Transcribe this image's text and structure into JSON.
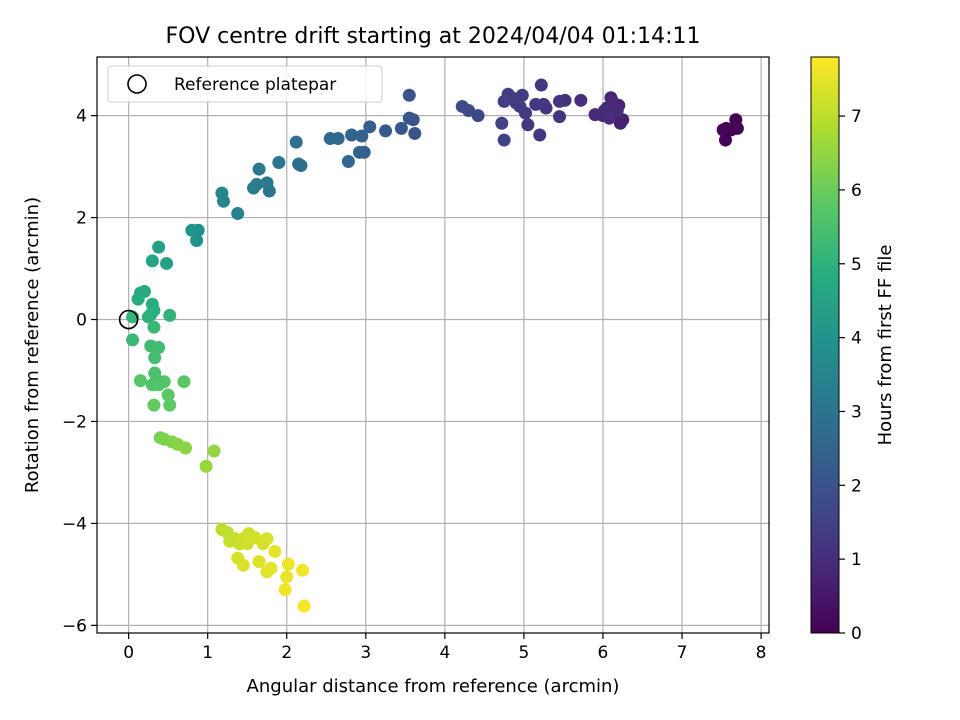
{
  "chart_data": {
    "type": "scatter",
    "title": "FOV centre drift starting at 2024/04/04 01:14:11",
    "xlabel": "Angular distance from reference (arcmin)",
    "ylabel": "Rotation from reference (arcmin)",
    "xlim": [
      -0.4,
      8.1
    ],
    "ylim": [
      -6.15,
      5.15
    ],
    "xticks": [
      0,
      1,
      2,
      3,
      4,
      5,
      6,
      7,
      8
    ],
    "yticks": [
      -6,
      -4,
      -2,
      0,
      2,
      4
    ],
    "grid": true,
    "legend": {
      "position": "top-left",
      "entries": [
        "Reference platepar"
      ]
    },
    "reference_point": {
      "x": 0,
      "y": 0
    },
    "colorbar": {
      "label": "Hours from first FF file",
      "min": 0,
      "max": 7.8,
      "ticks": [
        0,
        1,
        2,
        3,
        4,
        5,
        6,
        7
      ],
      "colormap": "viridis"
    },
    "points": [
      {
        "x": 7.68,
        "y": 3.92,
        "t": 0.0
      },
      {
        "x": 7.56,
        "y": 3.75,
        "t": 0.0
      },
      {
        "x": 7.62,
        "y": 3.72,
        "t": 0.05
      },
      {
        "x": 7.7,
        "y": 3.75,
        "t": 0.08
      },
      {
        "x": 7.55,
        "y": 3.52,
        "t": 0.1
      },
      {
        "x": 7.52,
        "y": 3.72,
        "t": 0.12
      },
      {
        "x": 6.25,
        "y": 3.92,
        "t": 0.7
      },
      {
        "x": 6.22,
        "y": 3.85,
        "t": 0.72
      },
      {
        "x": 6.15,
        "y": 4.05,
        "t": 0.75
      },
      {
        "x": 6.2,
        "y": 4.2,
        "t": 0.78
      },
      {
        "x": 6.1,
        "y": 4.35,
        "t": 0.8
      },
      {
        "x": 6.05,
        "y": 4.15,
        "t": 0.82
      },
      {
        "x": 6.0,
        "y": 4.0,
        "t": 0.85
      },
      {
        "x": 5.9,
        "y": 4.02,
        "t": 0.9
      },
      {
        "x": 6.12,
        "y": 4.28,
        "t": 0.88
      },
      {
        "x": 6.18,
        "y": 4.1,
        "t": 0.92
      },
      {
        "x": 6.02,
        "y": 4.1,
        "t": 0.95
      },
      {
        "x": 6.08,
        "y": 3.95,
        "t": 0.98
      },
      {
        "x": 5.72,
        "y": 4.3,
        "t": 1.05
      },
      {
        "x": 5.52,
        "y": 4.3,
        "t": 1.1
      },
      {
        "x": 5.45,
        "y": 4.28,
        "t": 1.12
      },
      {
        "x": 5.45,
        "y": 3.98,
        "t": 1.15
      },
      {
        "x": 5.28,
        "y": 4.15,
        "t": 1.18
      },
      {
        "x": 5.22,
        "y": 4.6,
        "t": 1.2
      },
      {
        "x": 5.25,
        "y": 4.22,
        "t": 1.22
      },
      {
        "x": 5.2,
        "y": 3.62,
        "t": 1.25
      },
      {
        "x": 5.15,
        "y": 4.22,
        "t": 1.28
      },
      {
        "x": 5.05,
        "y": 3.82,
        "t": 1.3
      },
      {
        "x": 5.02,
        "y": 4.05,
        "t": 1.32
      },
      {
        "x": 4.98,
        "y": 4.4,
        "t": 1.35
      },
      {
        "x": 4.95,
        "y": 4.18,
        "t": 1.38
      },
      {
        "x": 4.9,
        "y": 4.25,
        "t": 1.4
      },
      {
        "x": 4.85,
        "y": 4.35,
        "t": 1.42
      },
      {
        "x": 4.8,
        "y": 4.42,
        "t": 1.45
      },
      {
        "x": 4.75,
        "y": 4.28,
        "t": 1.48
      },
      {
        "x": 4.72,
        "y": 3.85,
        "t": 1.5
      },
      {
        "x": 4.75,
        "y": 3.52,
        "t": 1.52
      },
      {
        "x": 4.42,
        "y": 4.0,
        "t": 1.7
      },
      {
        "x": 4.3,
        "y": 4.1,
        "t": 1.75
      },
      {
        "x": 4.22,
        "y": 4.18,
        "t": 1.8
      },
      {
        "x": 3.62,
        "y": 3.65,
        "t": 2.0
      },
      {
        "x": 3.6,
        "y": 3.92,
        "t": 2.02
      },
      {
        "x": 3.55,
        "y": 3.95,
        "t": 2.05
      },
      {
        "x": 3.55,
        "y": 4.4,
        "t": 2.08
      },
      {
        "x": 3.45,
        "y": 3.75,
        "t": 2.1
      },
      {
        "x": 3.25,
        "y": 3.7,
        "t": 2.2
      },
      {
        "x": 3.05,
        "y": 3.78,
        "t": 2.3
      },
      {
        "x": 2.98,
        "y": 3.28,
        "t": 2.4
      },
      {
        "x": 2.95,
        "y": 3.6,
        "t": 2.42
      },
      {
        "x": 2.92,
        "y": 3.28,
        "t": 2.45
      },
      {
        "x": 2.82,
        "y": 3.62,
        "t": 2.5
      },
      {
        "x": 2.78,
        "y": 3.1,
        "t": 2.55
      },
      {
        "x": 2.65,
        "y": 3.55,
        "t": 2.6
      },
      {
        "x": 2.55,
        "y": 3.55,
        "t": 2.65
      },
      {
        "x": 2.18,
        "y": 3.02,
        "t": 2.8
      },
      {
        "x": 2.15,
        "y": 3.05,
        "t": 2.85
      },
      {
        "x": 2.12,
        "y": 3.48,
        "t": 2.9
      },
      {
        "x": 1.9,
        "y": 3.08,
        "t": 3.0
      },
      {
        "x": 1.78,
        "y": 2.52,
        "t": 3.05
      },
      {
        "x": 1.75,
        "y": 2.68,
        "t": 3.1
      },
      {
        "x": 1.65,
        "y": 2.95,
        "t": 3.15
      },
      {
        "x": 1.62,
        "y": 2.65,
        "t": 3.2
      },
      {
        "x": 1.58,
        "y": 2.58,
        "t": 3.25
      },
      {
        "x": 1.38,
        "y": 2.08,
        "t": 3.45
      },
      {
        "x": 1.2,
        "y": 2.32,
        "t": 3.55
      },
      {
        "x": 1.18,
        "y": 2.48,
        "t": 3.6
      },
      {
        "x": 0.88,
        "y": 1.75,
        "t": 3.9
      },
      {
        "x": 0.86,
        "y": 1.55,
        "t": 3.95
      },
      {
        "x": 0.8,
        "y": 1.75,
        "t": 4.0
      },
      {
        "x": 0.38,
        "y": 1.42,
        "t": 4.4
      },
      {
        "x": 0.48,
        "y": 1.1,
        "t": 4.45
      },
      {
        "x": 0.3,
        "y": 1.15,
        "t": 4.5
      },
      {
        "x": 0.2,
        "y": 0.55,
        "t": 4.7
      },
      {
        "x": 0.15,
        "y": 0.52,
        "t": 4.75
      },
      {
        "x": 0.12,
        "y": 0.4,
        "t": 4.8
      },
      {
        "x": 0.3,
        "y": 0.3,
        "t": 4.85
      },
      {
        "x": 0.32,
        "y": 0.18,
        "t": 4.9
      },
      {
        "x": 0.28,
        "y": 0.1,
        "t": 4.95
      },
      {
        "x": 0.25,
        "y": 0.05,
        "t": 5.0
      },
      {
        "x": 0.52,
        "y": 0.08,
        "t": 5.05
      },
      {
        "x": 0.05,
        "y": 0.05,
        "t": 5.1
      },
      {
        "x": 0.32,
        "y": -0.15,
        "t": 5.2
      },
      {
        "x": 0.05,
        "y": -0.4,
        "t": 5.25
      },
      {
        "x": 0.28,
        "y": -0.52,
        "t": 5.3
      },
      {
        "x": 0.38,
        "y": -0.55,
        "t": 5.35
      },
      {
        "x": 0.33,
        "y": -0.75,
        "t": 5.4
      },
      {
        "x": 0.33,
        "y": -1.05,
        "t": 5.5
      },
      {
        "x": 0.35,
        "y": -1.18,
        "t": 5.55
      },
      {
        "x": 0.3,
        "y": -1.28,
        "t": 5.6
      },
      {
        "x": 0.38,
        "y": -1.28,
        "t": 5.62
      },
      {
        "x": 0.45,
        "y": -1.22,
        "t": 5.65
      },
      {
        "x": 0.15,
        "y": -1.2,
        "t": 5.7
      },
      {
        "x": 0.7,
        "y": -1.22,
        "t": 5.75
      },
      {
        "x": 0.5,
        "y": -1.48,
        "t": 5.8
      },
      {
        "x": 0.52,
        "y": -1.68,
        "t": 5.85
      },
      {
        "x": 0.32,
        "y": -1.68,
        "t": 5.9
      },
      {
        "x": 0.4,
        "y": -2.32,
        "t": 6.2
      },
      {
        "x": 0.45,
        "y": -2.35,
        "t": 6.25
      },
      {
        "x": 0.55,
        "y": -2.4,
        "t": 6.3
      },
      {
        "x": 0.62,
        "y": -2.45,
        "t": 6.35
      },
      {
        "x": 0.72,
        "y": -2.52,
        "t": 6.4
      },
      {
        "x": 1.08,
        "y": -2.58,
        "t": 6.5
      },
      {
        "x": 0.98,
        "y": -2.88,
        "t": 6.55
      },
      {
        "x": 1.18,
        "y": -4.12,
        "t": 7.0
      },
      {
        "x": 1.25,
        "y": -4.18,
        "t": 7.05
      },
      {
        "x": 1.28,
        "y": -4.35,
        "t": 7.1
      },
      {
        "x": 1.35,
        "y": -4.3,
        "t": 7.12
      },
      {
        "x": 1.4,
        "y": -4.4,
        "t": 7.15
      },
      {
        "x": 1.45,
        "y": -4.3,
        "t": 7.18
      },
      {
        "x": 1.5,
        "y": -4.4,
        "t": 7.2
      },
      {
        "x": 1.52,
        "y": -4.2,
        "t": 7.22
      },
      {
        "x": 1.55,
        "y": -4.3,
        "t": 7.25
      },
      {
        "x": 1.6,
        "y": -4.28,
        "t": 7.28
      },
      {
        "x": 1.7,
        "y": -4.4,
        "t": 7.3
      },
      {
        "x": 1.75,
        "y": -4.3,
        "t": 7.32
      },
      {
        "x": 1.38,
        "y": -4.68,
        "t": 7.35
      },
      {
        "x": 1.45,
        "y": -4.82,
        "t": 7.38
      },
      {
        "x": 1.65,
        "y": -4.75,
        "t": 7.4
      },
      {
        "x": 1.75,
        "y": -4.95,
        "t": 7.45
      },
      {
        "x": 1.8,
        "y": -4.88,
        "t": 7.48
      },
      {
        "x": 1.85,
        "y": -4.55,
        "t": 7.5
      },
      {
        "x": 2.0,
        "y": -5.05,
        "t": 7.55
      },
      {
        "x": 2.02,
        "y": -4.8,
        "t": 7.58
      },
      {
        "x": 1.98,
        "y": -5.3,
        "t": 7.62
      },
      {
        "x": 2.2,
        "y": -4.92,
        "t": 7.65
      },
      {
        "x": 2.22,
        "y": -5.62,
        "t": 7.7
      }
    ]
  }
}
